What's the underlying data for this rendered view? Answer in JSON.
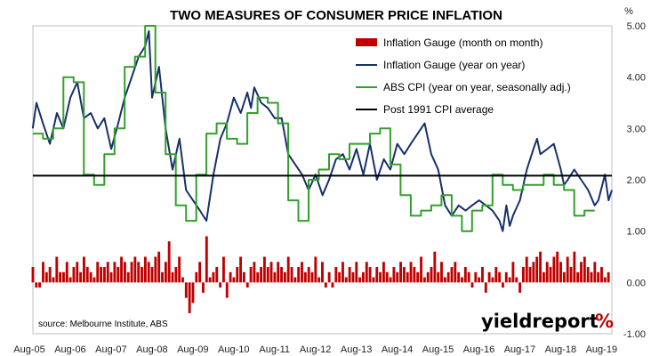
{
  "chart_data": {
    "type": "line",
    "title": "TWO MEASURES OF CONSUMER PRICE INFLATION",
    "unit": "%",
    "source": "source: Melbourne Institute, ABS",
    "brand": {
      "text": "yieldreport",
      "pct": "%"
    },
    "xlim": [
      2005.5833,
      2019.75
    ],
    "ylim": [
      -1,
      5
    ],
    "yticks": [
      {
        "value": 5,
        "label": "5.00"
      },
      {
        "value": 4,
        "label": "4.00"
      },
      {
        "value": 3,
        "label": "3.00"
      },
      {
        "value": 2,
        "label": "2.00"
      },
      {
        "value": 1,
        "label": "1.00"
      },
      {
        "value": 0,
        "label": "0.00"
      },
      {
        "value": -1,
        "label": "-1.00"
      }
    ],
    "xticks": [
      {
        "value": 2005.5833,
        "label": "Aug-05"
      },
      {
        "value": 2006.5833,
        "label": "Aug-06"
      },
      {
        "value": 2007.5833,
        "label": "Aug-07"
      },
      {
        "value": 2008.5833,
        "label": "Aug-08"
      },
      {
        "value": 2009.5833,
        "label": "Aug-09"
      },
      {
        "value": 2010.5833,
        "label": "Aug-10"
      },
      {
        "value": 2011.5833,
        "label": "Aug-11"
      },
      {
        "value": 2012.5833,
        "label": "Aug-12"
      },
      {
        "value": 2013.5833,
        "label": "Aug-13"
      },
      {
        "value": 2014.5833,
        "label": "Aug-14"
      },
      {
        "value": 2015.5833,
        "label": "Aug-15"
      },
      {
        "value": 2016.5833,
        "label": "Aug-16"
      },
      {
        "value": 2017.5833,
        "label": "Aug-17"
      },
      {
        "value": 2018.5833,
        "label": "Aug-18"
      },
      {
        "value": 2019.5833,
        "label": "Aug-19"
      }
    ],
    "legend_position": "top-right",
    "series": [
      {
        "name": "Inflation Gauge (month on month)",
        "kind": "bar",
        "color": "#c00000",
        "start": 2005.5833,
        "step": 0.08333,
        "values": [
          0.3,
          -0.1,
          -0.1,
          0.4,
          0.2,
          0.3,
          0.1,
          0.5,
          0.2,
          0.2,
          0.4,
          0.1,
          0.3,
          0.4,
          0.2,
          0.5,
          0.3,
          0.2,
          0.1,
          0.4,
          0.3,
          0.3,
          0.4,
          0.2,
          0.4,
          0.3,
          0.5,
          0.4,
          0.2,
          0.4,
          0.5,
          0.4,
          0.3,
          0.5,
          0.4,
          0.3,
          0.5,
          0.6,
          0.2,
          0.4,
          0.8,
          0.2,
          0.3,
          0.5,
          0.1,
          -0.3,
          -0.6,
          -0.4,
          0.2,
          0.4,
          -0.2,
          0.9,
          0.1,
          0.2,
          0.3,
          -0.1,
          0.5,
          -0.3,
          0.2,
          0.1,
          0.3,
          0.5,
          0.2,
          -0.1,
          0.3,
          0.4,
          0.2,
          0.3,
          0.5,
          0.3,
          0.4,
          0.2,
          0.4,
          0.3,
          0.2,
          0.5,
          0.3,
          0.1,
          0.3,
          0.4,
          0.2,
          0.3,
          0.2,
          0.5,
          0.1,
          0.4,
          -0.1,
          0.2,
          -0.1,
          0.3,
          0.2,
          0.4,
          0.1,
          0.3,
          0.2,
          0.4,
          0.1,
          0.2,
          0.4,
          0.3,
          0.1,
          0.3,
          0.2,
          0.4,
          0.2,
          0.1,
          0.3,
          0.2,
          0.4,
          0.3,
          0.2,
          0.4,
          0.3,
          0.2,
          0.5,
          0.1,
          0.2,
          0.3,
          0.6,
          0.2,
          0.4,
          0.1,
          0.2,
          0.3,
          0.4,
          0.2,
          0.1,
          0.3,
          0.2,
          -0.1,
          0.2,
          0.1,
          0.3,
          -0.2,
          0.2,
          0.1,
          0.3,
          0.2,
          -0.1,
          0.2,
          0.1,
          0.4,
          0.1,
          -0.2,
          0.3,
          0.5,
          0.3,
          0.4,
          0.5,
          0.6,
          0.2,
          0.4,
          0.3,
          0.5,
          0.6,
          0.4,
          0.2,
          0.5,
          0.3,
          0.6,
          0.2,
          0.4,
          0.5,
          0.3,
          0.2,
          0.4,
          0.2,
          0.3,
          0.1,
          0.2,
          0.3,
          0.1,
          0.4,
          0.2,
          0.1,
          0.3,
          -0.1,
          0.2,
          0.1,
          0.3,
          0.2,
          0.1,
          0.4,
          -0.1,
          0.2,
          0.1,
          0.3
        ]
      },
      {
        "name": "Inflation Gauge (year on year)",
        "kind": "line",
        "color": "#17306b",
        "points": [
          [
            2005.58,
            3.0
          ],
          [
            2005.67,
            3.5
          ],
          [
            2005.83,
            3.1
          ],
          [
            2006.0,
            2.7
          ],
          [
            2006.17,
            3.3
          ],
          [
            2006.33,
            3.0
          ],
          [
            2006.5,
            3.6
          ],
          [
            2006.67,
            3.9
          ],
          [
            2006.83,
            3.2
          ],
          [
            2007.0,
            3.3
          ],
          [
            2007.17,
            3.0
          ],
          [
            2007.33,
            3.2
          ],
          [
            2007.5,
            2.6
          ],
          [
            2007.67,
            3.1
          ],
          [
            2007.83,
            3.6
          ],
          [
            2008.0,
            4.0
          ],
          [
            2008.17,
            4.4
          ],
          [
            2008.33,
            4.6
          ],
          [
            2008.42,
            4.9
          ],
          [
            2008.5,
            3.6
          ],
          [
            2008.67,
            4.2
          ],
          [
            2008.83,
            3.0
          ],
          [
            2009.0,
            2.2
          ],
          [
            2009.17,
            2.8
          ],
          [
            2009.33,
            1.8
          ],
          [
            2009.5,
            1.6
          ],
          [
            2009.67,
            1.4
          ],
          [
            2009.83,
            1.2
          ],
          [
            2010.0,
            2.1
          ],
          [
            2010.17,
            2.8
          ],
          [
            2010.33,
            3.1
          ],
          [
            2010.5,
            3.6
          ],
          [
            2010.67,
            3.3
          ],
          [
            2010.83,
            3.7
          ],
          [
            2010.92,
            3.4
          ],
          [
            2011.0,
            3.8
          ],
          [
            2011.17,
            3.5
          ],
          [
            2011.33,
            3.4
          ],
          [
            2011.5,
            3.2
          ],
          [
            2011.67,
            3.2
          ],
          [
            2011.83,
            2.5
          ],
          [
            2012.0,
            2.3
          ],
          [
            2012.17,
            2.1
          ],
          [
            2012.33,
            1.8
          ],
          [
            2012.5,
            2.1
          ],
          [
            2012.67,
            1.7
          ],
          [
            2012.83,
            2.0
          ],
          [
            2013.0,
            2.4
          ],
          [
            2013.17,
            2.5
          ],
          [
            2013.33,
            2.2
          ],
          [
            2013.5,
            2.6
          ],
          [
            2013.67,
            2.1
          ],
          [
            2013.83,
            2.7
          ],
          [
            2014.0,
            2.0
          ],
          [
            2014.17,
            2.4
          ],
          [
            2014.33,
            2.2
          ],
          [
            2014.5,
            2.7
          ],
          [
            2014.67,
            2.5
          ],
          [
            2014.83,
            2.7
          ],
          [
            2015.0,
            2.9
          ],
          [
            2015.17,
            3.1
          ],
          [
            2015.33,
            2.5
          ],
          [
            2015.5,
            2.2
          ],
          [
            2015.67,
            1.5
          ],
          [
            2015.83,
            1.3
          ],
          [
            2016.0,
            1.5
          ],
          [
            2016.17,
            1.4
          ],
          [
            2016.33,
            1.5
          ],
          [
            2016.5,
            1.6
          ],
          [
            2016.67,
            1.5
          ],
          [
            2016.83,
            1.4
          ],
          [
            2017.0,
            1.2
          ],
          [
            2017.08,
            1.0
          ],
          [
            2017.17,
            1.5
          ],
          [
            2017.25,
            1.1
          ],
          [
            2017.33,
            1.3
          ],
          [
            2017.5,
            1.6
          ],
          [
            2017.67,
            2.2
          ],
          [
            2017.83,
            2.6
          ],
          [
            2017.92,
            2.8
          ],
          [
            2018.0,
            2.5
          ],
          [
            2018.17,
            2.6
          ],
          [
            2018.33,
            2.7
          ],
          [
            2018.5,
            2.2
          ],
          [
            2018.58,
            1.9
          ],
          [
            2018.67,
            2.0
          ],
          [
            2018.83,
            2.2
          ],
          [
            2019.0,
            2.0
          ],
          [
            2019.17,
            1.8
          ],
          [
            2019.33,
            1.5
          ],
          [
            2019.42,
            1.6
          ],
          [
            2019.58,
            2.1
          ],
          [
            2019.67,
            1.6
          ],
          [
            2019.75,
            1.8
          ]
        ]
      },
      {
        "name": "ABS CPI (year on year, seasonally adj.)",
        "kind": "line",
        "color": "#33a02c",
        "points": [
          [
            2005.58,
            2.9
          ],
          [
            2005.83,
            2.9
          ],
          [
            2005.83,
            2.8
          ],
          [
            2006.08,
            2.8
          ],
          [
            2006.08,
            3.0
          ],
          [
            2006.33,
            3.0
          ],
          [
            2006.33,
            4.0
          ],
          [
            2006.58,
            4.0
          ],
          [
            2006.58,
            3.9
          ],
          [
            2006.83,
            3.9
          ],
          [
            2006.83,
            2.1
          ],
          [
            2007.08,
            2.1
          ],
          [
            2007.08,
            1.9
          ],
          [
            2007.33,
            1.9
          ],
          [
            2007.33,
            2.5
          ],
          [
            2007.58,
            2.5
          ],
          [
            2007.58,
            3.0
          ],
          [
            2007.83,
            3.0
          ],
          [
            2007.83,
            4.2
          ],
          [
            2008.08,
            4.2
          ],
          [
            2008.08,
            4.4
          ],
          [
            2008.33,
            4.4
          ],
          [
            2008.33,
            5.0
          ],
          [
            2008.58,
            5.0
          ],
          [
            2008.58,
            3.7
          ],
          [
            2008.83,
            3.7
          ],
          [
            2008.83,
            2.5
          ],
          [
            2009.08,
            2.5
          ],
          [
            2009.08,
            1.5
          ],
          [
            2009.33,
            1.5
          ],
          [
            2009.33,
            1.2
          ],
          [
            2009.58,
            1.2
          ],
          [
            2009.58,
            2.1
          ],
          [
            2009.83,
            2.1
          ],
          [
            2009.83,
            2.9
          ],
          [
            2010.08,
            2.9
          ],
          [
            2010.08,
            3.1
          ],
          [
            2010.33,
            3.1
          ],
          [
            2010.33,
            2.8
          ],
          [
            2010.58,
            2.8
          ],
          [
            2010.58,
            2.7
          ],
          [
            2010.83,
            2.7
          ],
          [
            2010.83,
            3.3
          ],
          [
            2011.08,
            3.3
          ],
          [
            2011.08,
            3.6
          ],
          [
            2011.33,
            3.6
          ],
          [
            2011.33,
            3.5
          ],
          [
            2011.58,
            3.5
          ],
          [
            2011.58,
            3.1
          ],
          [
            2011.83,
            3.1
          ],
          [
            2011.83,
            1.6
          ],
          [
            2012.08,
            1.6
          ],
          [
            2012.08,
            1.2
          ],
          [
            2012.33,
            1.2
          ],
          [
            2012.33,
            2.0
          ],
          [
            2012.58,
            2.0
          ],
          [
            2012.58,
            2.2
          ],
          [
            2012.83,
            2.2
          ],
          [
            2012.83,
            2.5
          ],
          [
            2013.08,
            2.5
          ],
          [
            2013.08,
            2.4
          ],
          [
            2013.33,
            2.4
          ],
          [
            2013.33,
            2.7
          ],
          [
            2013.58,
            2.7
          ],
          [
            2013.58,
            2.7
          ],
          [
            2013.83,
            2.7
          ],
          [
            2013.83,
            2.9
          ],
          [
            2014.08,
            2.9
          ],
          [
            2014.08,
            3.0
          ],
          [
            2014.33,
            3.0
          ],
          [
            2014.33,
            2.3
          ],
          [
            2014.58,
            2.3
          ],
          [
            2014.58,
            1.7
          ],
          [
            2014.83,
            1.7
          ],
          [
            2014.83,
            1.3
          ],
          [
            2015.08,
            1.3
          ],
          [
            2015.08,
            1.4
          ],
          [
            2015.33,
            1.4
          ],
          [
            2015.33,
            1.5
          ],
          [
            2015.58,
            1.5
          ],
          [
            2015.58,
            1.7
          ],
          [
            2015.83,
            1.7
          ],
          [
            2015.83,
            1.3
          ],
          [
            2016.08,
            1.3
          ],
          [
            2016.08,
            1.0
          ],
          [
            2016.33,
            1.0
          ],
          [
            2016.33,
            1.4
          ],
          [
            2016.58,
            1.4
          ],
          [
            2016.58,
            1.5
          ],
          [
            2016.83,
            1.5
          ],
          [
            2016.83,
            2.1
          ],
          [
            2017.08,
            2.1
          ],
          [
            2017.08,
            1.9
          ],
          [
            2017.33,
            1.9
          ],
          [
            2017.33,
            1.8
          ],
          [
            2017.58,
            1.8
          ],
          [
            2017.58,
            1.9
          ],
          [
            2017.83,
            1.9
          ],
          [
            2017.83,
            1.9
          ],
          [
            2018.08,
            1.9
          ],
          [
            2018.08,
            2.1
          ],
          [
            2018.33,
            2.1
          ],
          [
            2018.33,
            1.9
          ],
          [
            2018.58,
            1.9
          ],
          [
            2018.58,
            1.8
          ],
          [
            2018.83,
            1.8
          ],
          [
            2018.83,
            1.3
          ],
          [
            2019.08,
            1.3
          ],
          [
            2019.08,
            1.4
          ],
          [
            2019.33,
            1.4
          ]
        ]
      },
      {
        "name": "Post 1991 CPI average",
        "kind": "hline",
        "color": "#000000",
        "value": 2.08
      }
    ]
  }
}
